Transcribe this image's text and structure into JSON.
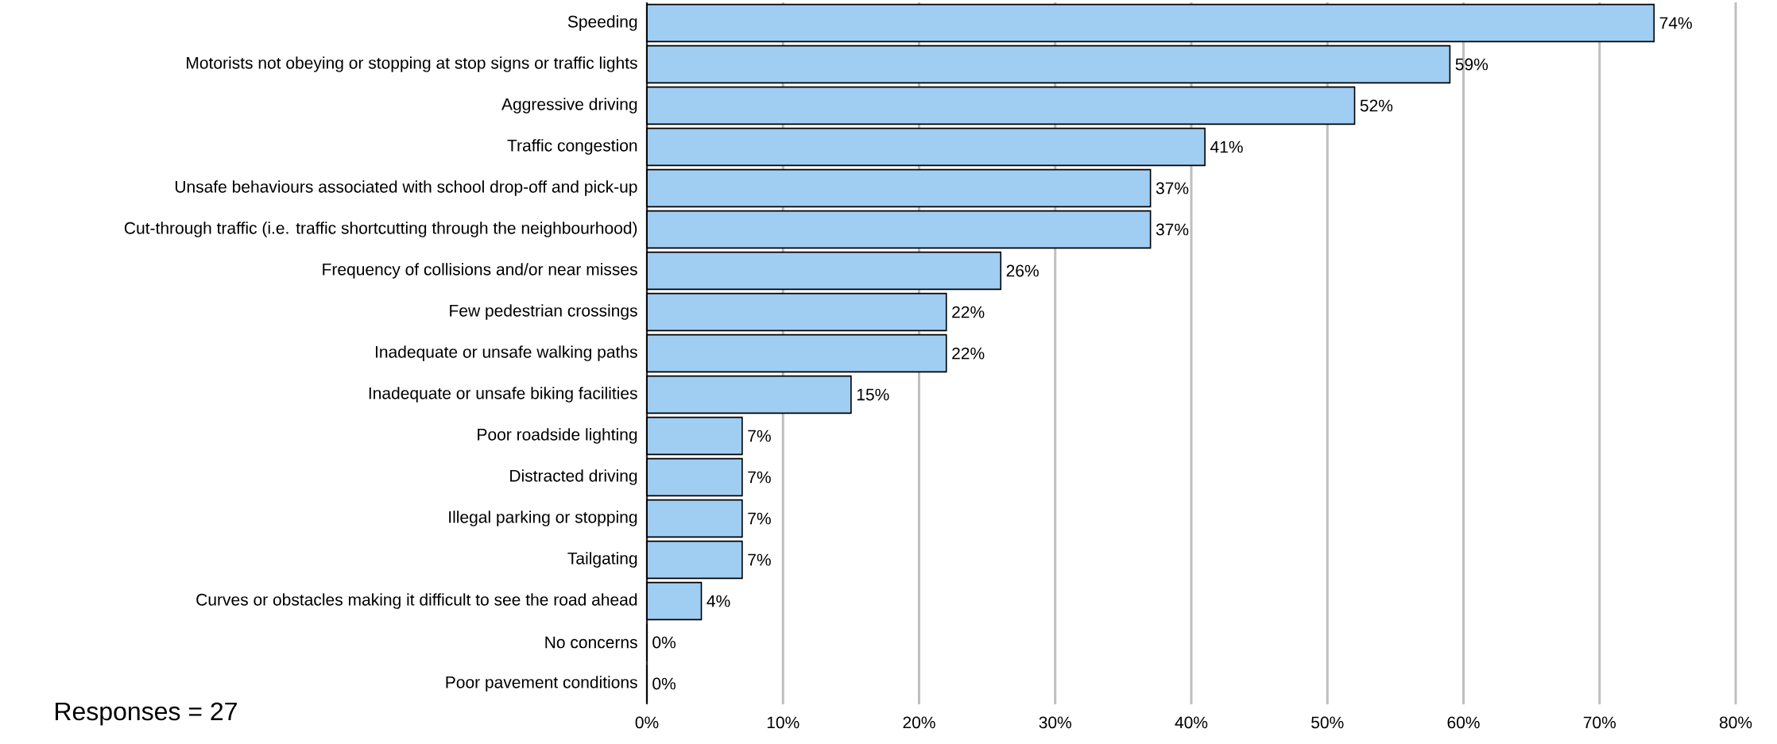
{
  "chart_data": {
    "type": "bar",
    "orientation": "horizontal",
    "categories": [
      "Speeding",
      "Motorists not obeying or stopping at stop signs or traffic lights",
      "Aggressive driving",
      "Traffic congestion",
      "Unsafe behaviours associated with school drop-off and pick-up",
      "Cut-through traffic (i.e. traffic shortcutting through the neighbourhood)",
      "Frequency of collisions and/or near misses",
      "Few pedestrian crossings",
      "Inadequate or unsafe walking paths",
      "Inadequate or unsafe biking facilities",
      "Poor roadside lighting",
      "Distracted driving",
      "Illegal parking or stopping",
      "Tailgating",
      "Curves or obstacles making it difficult to see the road ahead",
      "No concerns",
      "Poor pavement conditions"
    ],
    "values": [
      74,
      59,
      52,
      41,
      37,
      37,
      26,
      22,
      22,
      15,
      7,
      7,
      7,
      7,
      4,
      0,
      0
    ],
    "value_labels": [
      "74%",
      "59%",
      "52%",
      "41%",
      "37%",
      "37%",
      "26%",
      "22%",
      "22%",
      "15%",
      "7%",
      "7%",
      "7%",
      "7%",
      "4%",
      "0%",
      "0%"
    ],
    "color": "#a0cdf2",
    "xlim": [
      0,
      80
    ],
    "xticks": [
      {
        "value": 0,
        "label": "0%"
      },
      {
        "value": 10,
        "label": "10%"
      },
      {
        "value": 20,
        "label": "20%"
      },
      {
        "value": 30,
        "label": "30%"
      },
      {
        "value": 40,
        "label": "40%"
      },
      {
        "value": 50,
        "label": "50%"
      },
      {
        "value": 60,
        "label": "60%"
      },
      {
        "value": 70,
        "label": "70%"
      },
      {
        "value": 80,
        "label": "80%"
      }
    ],
    "grid": "x",
    "annotations": [
      "Responses = 27"
    ]
  }
}
